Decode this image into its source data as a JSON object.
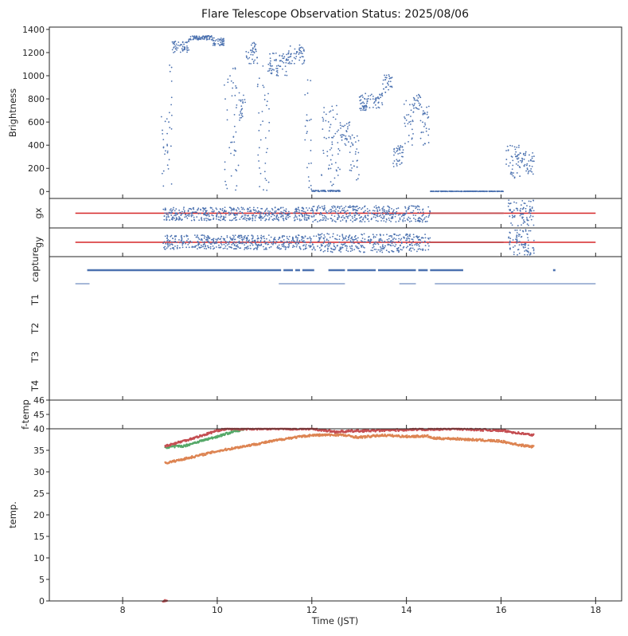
{
  "chart_data": {
    "type": "scatter",
    "title": "Flare Telescope Observation Status: 2025/08/06",
    "xlabel": "Time (JST)",
    "xlim": [
      6.45,
      18.55
    ],
    "xticks": [
      8,
      10,
      12,
      14,
      16,
      18
    ],
    "colors": {
      "blue": "#4c72b0",
      "orange": "#dd8452",
      "green": "#55a868",
      "red": "#c44e52",
      "line_red": "#d62728"
    },
    "panels": [
      {
        "id": "brightness",
        "ylabel": "Brightness",
        "ylim": [
          -60,
          1420
        ],
        "yticks": [
          0,
          200,
          400,
          600,
          800,
          1000,
          1200,
          1400
        ],
        "series": [
          {
            "color": "blue",
            "segments": [
              {
                "x0": 8.82,
                "x1": 8.88,
                "y": [
                  10,
                  700
                ]
              },
              {
                "x0": 8.88,
                "x1": 9.05,
                "y": [
                  0,
                  1180
                ]
              },
              {
                "x0": 9.05,
                "x1": 9.4,
                "y": [
                  1200,
                  1300
                ]
              },
              {
                "x0": 9.4,
                "x1": 9.9,
                "y": [
                  1310,
                  1345
                ]
              },
              {
                "x0": 9.9,
                "x1": 10.15,
                "y": [
                  1260,
                  1330
                ]
              },
              {
                "x0": 10.15,
                "x1": 10.45,
                "y": [
                  0,
                  1100
                ]
              },
              {
                "x0": 10.45,
                "x1": 10.6,
                "y": [
                  600,
                  900
                ]
              },
              {
                "x0": 10.6,
                "x1": 10.85,
                "y": [
                  1100,
                  1290
                ]
              },
              {
                "x0": 10.85,
                "x1": 11.1,
                "y": [
                  0,
                  1100
                ]
              },
              {
                "x0": 11.1,
                "x1": 11.5,
                "y": [
                  1000,
                  1200
                ]
              },
              {
                "x0": 11.5,
                "x1": 11.85,
                "y": [
                  1100,
                  1270
                ]
              },
              {
                "x0": 11.85,
                "x1": 12.0,
                "y": [
                  0,
                  1000
                ]
              },
              {
                "x0": 12.0,
                "x1": 12.6,
                "y": [
                  0,
                  10
                ]
              },
              {
                "x0": 12.2,
                "x1": 12.6,
                "y": [
                  50,
                  750
                ]
              },
              {
                "x0": 12.6,
                "x1": 12.8,
                "y": [
                  400,
                  600
                ]
              },
              {
                "x0": 12.8,
                "x1": 13.0,
                "y": [
                  100,
                  500
                ]
              },
              {
                "x0": 13.0,
                "x1": 13.5,
                "y": [
                  700,
                  850
                ]
              },
              {
                "x0": 13.5,
                "x1": 13.7,
                "y": [
                  850,
                  1010
                ]
              },
              {
                "x0": 13.7,
                "x1": 13.95,
                "y": [
                  200,
                  400
                ]
              },
              {
                "x0": 13.95,
                "x1": 14.15,
                "y": [
                  400,
                  800
                ]
              },
              {
                "x0": 14.15,
                "x1": 14.3,
                "y": [
                  700,
                  840
                ]
              },
              {
                "x0": 14.3,
                "x1": 14.5,
                "y": [
                  400,
                  750
                ]
              },
              {
                "x0": 14.5,
                "x1": 16.05,
                "y": [
                  0,
                  3
                ]
              },
              {
                "x0": 16.1,
                "x1": 16.4,
                "y": [
                  100,
                  400
                ]
              },
              {
                "x0": 16.4,
                "x1": 16.7,
                "y": [
                  150,
                  350
                ]
              }
            ]
          }
        ]
      },
      {
        "id": "gx",
        "ylabel": "gx",
        "ylim": [
          -1,
          1
        ],
        "yticks": [],
        "reference_line": {
          "x": [
            7.0,
            18.0
          ],
          "y": 0,
          "color": "line_red"
        },
        "series": [
          {
            "color": "blue",
            "segments": [
              {
                "x0": 8.85,
                "x1": 12.0,
                "y": [
                  -0.5,
                  0.4
                ]
              },
              {
                "x0": 12.0,
                "x1": 14.5,
                "y": [
                  -0.6,
                  0.5
                ]
              },
              {
                "x0": 16.15,
                "x1": 16.7,
                "y": [
                  -0.9,
                  0.9
                ]
              }
            ]
          },
          {
            "color": "red",
            "segments": [
              {
                "x0": 14.5,
                "x1": 16.05,
                "y": [
                  0,
                  0
                ]
              }
            ]
          }
        ]
      },
      {
        "id": "gy",
        "ylabel": "gy",
        "ylim": [
          -1,
          1
        ],
        "yticks": [],
        "reference_line": {
          "x": [
            7.0,
            18.0
          ],
          "y": 0,
          "color": "line_red"
        },
        "series": [
          {
            "color": "blue",
            "segments": [
              {
                "x0": 8.85,
                "x1": 12.0,
                "y": [
                  -0.5,
                  0.5
                ]
              },
              {
                "x0": 12.0,
                "x1": 14.5,
                "y": [
                  -0.7,
                  0.6
                ]
              },
              {
                "x0": 16.15,
                "x1": 16.7,
                "y": [
                  -0.9,
                  0.9
                ]
              }
            ]
          },
          {
            "color": "red",
            "segments": [
              {
                "x0": 14.5,
                "x1": 16.05,
                "y": [
                  0,
                  0
                ]
              }
            ]
          }
        ]
      },
      {
        "id": "capture",
        "ylabel": "",
        "categories": [
          "capture",
          "T1",
          "T2",
          "T3",
          "T4"
        ],
        "capture_segments": [
          [
            7.25,
            11.35
          ],
          [
            11.4,
            11.6
          ],
          [
            11.65,
            11.75
          ],
          [
            11.8,
            12.05
          ],
          [
            12.35,
            12.7
          ],
          [
            12.75,
            13.35
          ],
          [
            13.4,
            14.2
          ],
          [
            14.25,
            14.45
          ],
          [
            14.5,
            15.2
          ],
          [
            17.1,
            17.15
          ]
        ],
        "t1_segments": [
          [
            7.0,
            7.3
          ],
          [
            11.3,
            12.7
          ],
          [
            13.85,
            14.2
          ],
          [
            14.6,
            18.0
          ]
        ]
      },
      {
        "id": "f-temp",
        "ylabel": "f-temp",
        "ylim": [
          44,
          46
        ],
        "yticks": [
          45,
          46
        ],
        "series": []
      },
      {
        "id": "temp",
        "ylabel": "temp.",
        "ylim": [
          0,
          40
        ],
        "yticks": [
          0,
          5,
          10,
          15,
          20,
          25,
          30,
          35,
          40
        ],
        "series": [
          {
            "color": "orange",
            "points": [
              [
                8.9,
                32
              ],
              [
                9.5,
                33.5
              ],
              [
                10,
                34.8
              ],
              [
                10.5,
                35.8
              ],
              [
                11,
                36.8
              ],
              [
                11.5,
                37.8
              ],
              [
                12,
                38.5
              ],
              [
                12.6,
                38.6
              ],
              [
                13,
                38.0
              ],
              [
                13.5,
                38.5
              ],
              [
                14,
                38.2
              ],
              [
                14.45,
                38.3
              ],
              [
                14.55,
                37.8
              ],
              [
                15,
                37.7
              ],
              [
                15.5,
                37.4
              ],
              [
                16,
                37.1
              ],
              [
                16.4,
                36.2
              ],
              [
                16.7,
                35.8
              ]
            ]
          },
          {
            "color": "green",
            "points": [
              [
                8.9,
                35.7
              ],
              [
                9.3,
                36.0
              ],
              [
                9.6,
                37.0
              ],
              [
                10,
                38.2
              ],
              [
                10.3,
                39.2
              ],
              [
                10.6,
                40
              ]
            ]
          },
          {
            "color": "red",
            "points": [
              [
                8.9,
                36.0
              ],
              [
                9.3,
                37.2
              ],
              [
                9.7,
                38.5
              ],
              [
                10,
                39.6
              ],
              [
                10.2,
                40
              ],
              [
                12,
                40
              ],
              [
                12.5,
                39.3
              ],
              [
                13,
                39.5
              ],
              [
                15,
                40
              ],
              [
                16,
                39.6
              ],
              [
                16.5,
                38.8
              ],
              [
                16.7,
                38.5
              ]
            ]
          },
          {
            "color": "red",
            "points": [
              [
                8.85,
                0
              ],
              [
                8.95,
                0
              ]
            ]
          }
        ]
      }
    ]
  }
}
